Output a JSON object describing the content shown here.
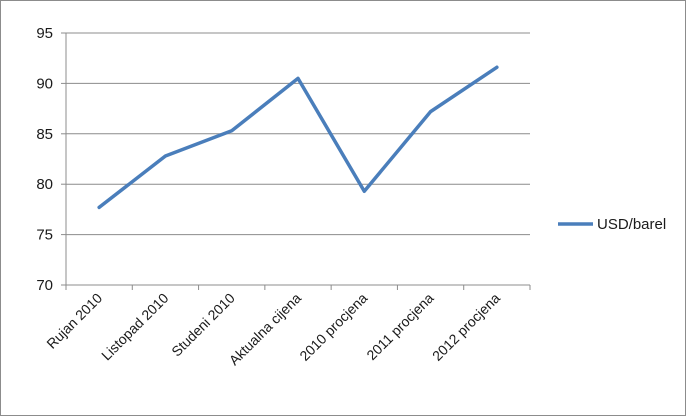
{
  "chart_data": {
    "type": "line",
    "categories": [
      "Rujan 2010",
      "Listopad 2010",
      "Studeni 2010",
      "Aktualna cijena",
      "2010 procjena",
      "2011 procjena",
      "2012 procjena"
    ],
    "series": [
      {
        "name": "USD/barel",
        "values": [
          77.7,
          82.8,
          85.3,
          90.5,
          79.3,
          87.2,
          91.6
        ],
        "color": "#4a7ebb"
      }
    ],
    "ylim": [
      70,
      95
    ],
    "yticks": [
      70,
      75,
      80,
      85,
      90,
      95
    ],
    "grid": true,
    "legend_position": "right",
    "gridline_color": "#8c8c8c",
    "axis_color": "#8c8c8c"
  }
}
